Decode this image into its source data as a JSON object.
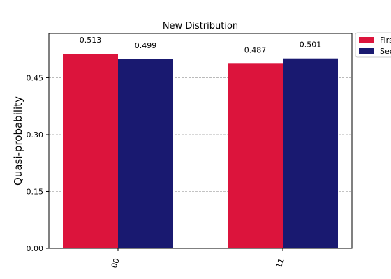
{
  "chart_data": {
    "type": "bar",
    "title": "New Distribution",
    "xlabel": "",
    "ylabel": "Quasi-probability",
    "categories": [
      "00",
      "11"
    ],
    "series": [
      {
        "name": "First",
        "values": [
          0.513,
          0.487
        ],
        "color": "#dc143c"
      },
      {
        "name": "Second",
        "values": [
          0.499,
          0.501
        ],
        "color": "#191970"
      }
    ],
    "ylim": [
      0,
      0.5667
    ],
    "yticks": [
      0.0,
      0.15,
      0.3,
      0.45
    ],
    "ytick_labels": [
      "0.00",
      "0.15",
      "0.30",
      "0.45"
    ],
    "grid": "y-dashed",
    "legend_position": "outside-top-right",
    "show_value_labels": true,
    "xtick_rotation": 70
  }
}
